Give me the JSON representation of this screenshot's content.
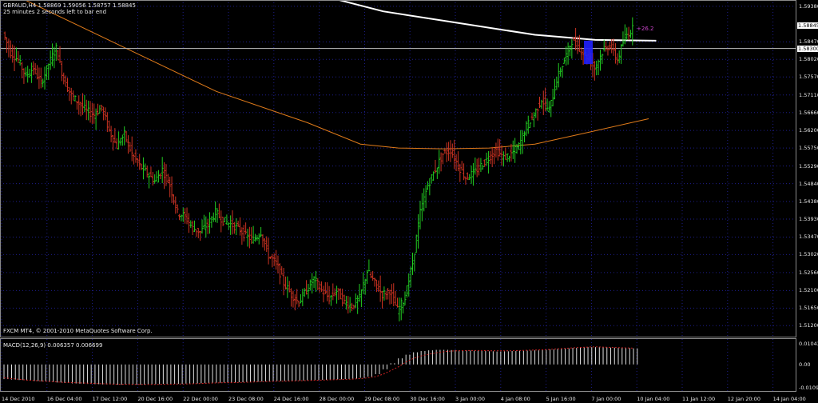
{
  "header": {
    "symbol_line": "GBPAUD,H4  1.58869 1.59056 1.58757 1.58845",
    "timer_text": "25 minutes 2 seconds left to bar end"
  },
  "annotation": {
    "pips_text": "+26.2",
    "color": "#cc44cc"
  },
  "footer": {
    "copyright": "FXCM MT4, © 2001-2010 MetaQuotes Software Corp."
  },
  "macd": {
    "label": "MACD(12,26,9) 0.006357 0.006699",
    "scale": [
      "0.01043",
      "0.00",
      "-0.01090"
    ]
  },
  "price_scale": [
    "1.59380",
    "1.58470",
    "1.58020",
    "1.57570",
    "1.57110",
    "1.56660",
    "1.56200",
    "1.55750",
    "1.55290",
    "1.54840",
    "1.54380",
    "1.53930",
    "1.53470",
    "1.53020",
    "1.52560",
    "1.52100",
    "1.51650",
    "1.51200"
  ],
  "price_tags": {
    "current": "1.58845",
    "hline": "1.58300"
  },
  "time_labels": [
    "14 Dec 2010",
    "16 Dec 04:00",
    "17 Dec 12:00",
    "20 Dec 16:00",
    "22 Dec 00:00",
    "23 Dec 08:00",
    "24 Dec 16:00",
    "28 Dec 00:00",
    "29 Dec 08:00",
    "30 Dec 16:00",
    "3 Jan 00:00",
    "4 Jan 08:00",
    "5 Jan 16:00",
    "7 Jan 00:00",
    "10 Jan 04:00",
    "11 Jan 12:00",
    "12 Jan 20:00",
    "14 Jan 04:00"
  ],
  "colors": {
    "background": "#000000",
    "grid": "#1e1e8c",
    "bull_bar": "#22cc22",
    "bear_bar": "#cc3322",
    "ma_orange": "#e07b1a",
    "ma_white": "#ffffff",
    "highlight": "#2020ff",
    "hline": "#c0c0c0",
    "macd_signal": "#cc2222"
  },
  "chart_data": {
    "type": "ohlc",
    "symbol": "GBPAUD",
    "timeframe": "H4",
    "current_ohlc": {
      "open": 1.58869,
      "high": 1.59056,
      "low": 1.58757,
      "close": 1.58845
    },
    "ylim": [
      1.5094,
      1.5948
    ],
    "horizontal_line": 1.583,
    "close_path": [
      1.587,
      1.582,
      1.58,
      1.576,
      1.578,
      1.574,
      1.579,
      1.583,
      1.575,
      1.571,
      1.569,
      1.567,
      1.566,
      1.568,
      1.562,
      1.558,
      1.561,
      1.556,
      1.553,
      1.551,
      1.549,
      1.552,
      1.548,
      1.541,
      1.54,
      1.537,
      1.536,
      1.538,
      1.541,
      1.539,
      1.538,
      1.537,
      1.535,
      1.534,
      1.536,
      1.53,
      1.528,
      1.523,
      1.52,
      1.518,
      1.521,
      1.524,
      1.521,
      1.519,
      1.521,
      1.518,
      1.517,
      1.519,
      1.526,
      1.523,
      1.52,
      1.521,
      1.516,
      1.519,
      1.528,
      1.541,
      1.548,
      1.552,
      1.556,
      1.557,
      1.553,
      1.55,
      1.551,
      1.553,
      1.555,
      1.557,
      1.555,
      1.556,
      1.558,
      1.563,
      1.566,
      1.57,
      1.567,
      1.575,
      1.58,
      1.585,
      1.583,
      1.581,
      1.578,
      1.582,
      1.584,
      1.58,
      1.586,
      1.588
    ],
    "orange_ma": [
      [
        0,
        1.598
      ],
      [
        14,
        1.585
      ],
      [
        28,
        1.572
      ],
      [
        40,
        1.564
      ],
      [
        47,
        1.5585
      ],
      [
        52,
        1.5575
      ],
      [
        58,
        1.5573
      ],
      [
        64,
        1.5575
      ],
      [
        70,
        1.5585
      ],
      [
        77,
        1.5615
      ],
      [
        85,
        1.565
      ]
    ],
    "white_ma": [
      [
        35,
        1.6
      ],
      [
        50,
        1.5925
      ],
      [
        60,
        1.5895
      ],
      [
        70,
        1.5865
      ],
      [
        78,
        1.5852
      ],
      [
        86,
        1.585
      ]
    ],
    "highlight_bars": [
      77,
      84
    ],
    "macd": {
      "histogram": [
        -0.006,
        -0.0062,
        -0.0064,
        -0.0066,
        -0.0068,
        -0.007,
        -0.0072,
        -0.0074,
        -0.0076,
        -0.0078,
        -0.0079,
        -0.008,
        -0.0081,
        -0.0082,
        -0.0082,
        -0.0083,
        -0.0083,
        -0.0083,
        -0.0083,
        -0.0082,
        -0.0081,
        -0.008,
        -0.008,
        -0.008,
        -0.0079,
        -0.0078,
        -0.0077,
        -0.0076,
        -0.0075,
        -0.0074,
        -0.0074,
        -0.0073,
        -0.0072,
        -0.0071,
        -0.007,
        -0.0069,
        -0.0068,
        -0.0068,
        -0.0067,
        -0.0066,
        -0.0065,
        -0.0064,
        -0.0063,
        -0.0062,
        -0.0061,
        -0.006,
        -0.0058,
        -0.0055,
        -0.005,
        -0.004,
        -0.002,
        0.0005,
        0.0025,
        0.004,
        0.005,
        0.0055,
        0.0058,
        0.006,
        0.006,
        0.0059,
        0.0058,
        0.0057,
        0.0056,
        0.0055,
        0.0054,
        0.0053,
        0.0054,
        0.0055,
        0.0056,
        0.0057,
        0.0058,
        0.006,
        0.0062,
        0.0064,
        0.0066,
        0.0068,
        0.007,
        0.0071,
        0.0071,
        0.007,
        0.0069,
        0.0068,
        0.0067,
        0.0066
      ],
      "signal": [
        -0.0055,
        -0.0058,
        -0.0061,
        -0.0064,
        -0.0066,
        -0.0068,
        -0.007,
        -0.0072,
        -0.0074,
        -0.0075,
        -0.0076,
        -0.0077,
        -0.0078,
        -0.0079,
        -0.008,
        -0.0081,
        -0.0081,
        -0.0082,
        -0.0082,
        -0.0082,
        -0.0082,
        -0.0081,
        -0.0081,
        -0.008,
        -0.008,
        -0.0079,
        -0.0078,
        -0.0077,
        -0.0076,
        -0.0075,
        -0.0075,
        -0.0074,
        -0.0073,
        -0.0072,
        -0.0071,
        -0.007,
        -0.0069,
        -0.0069,
        -0.0068,
        -0.0067,
        -0.0066,
        -0.0065,
        -0.0064,
        -0.0063,
        -0.0062,
        -0.0061,
        -0.006,
        -0.0058,
        -0.0055,
        -0.005,
        -0.004,
        -0.0025,
        -0.001,
        0.001,
        0.0025,
        0.0035,
        0.0042,
        0.0048,
        0.0052,
        0.0055,
        0.0056,
        0.0057,
        0.0057,
        0.0057,
        0.0056,
        0.0056,
        0.0056,
        0.0056,
        0.0057,
        0.0058,
        0.0059,
        0.006,
        0.0062,
        0.0064,
        0.0066,
        0.0068,
        0.007,
        0.0071,
        0.0072,
        0.0071,
        0.007,
        0.0069,
        0.0068,
        0.0067
      ],
      "ylim": [
        -0.0109,
        0.01043
      ]
    }
  }
}
